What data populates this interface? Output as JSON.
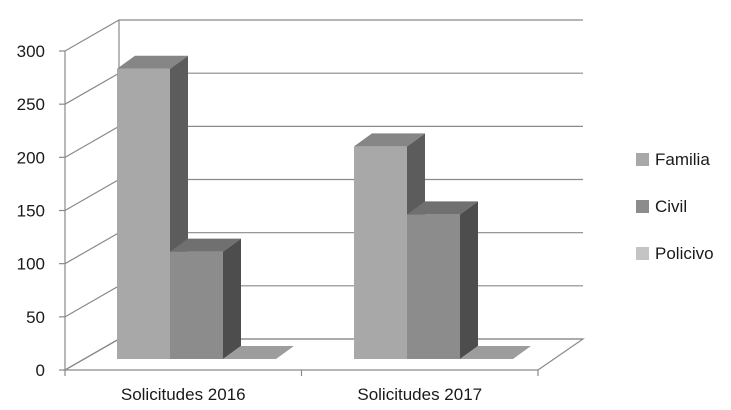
{
  "chart_data": {
    "type": "bar",
    "subtype": "3d-clustered-column",
    "title": "",
    "xlabel": "",
    "ylabel": "",
    "categories": [
      "Solicitudes 2016",
      "Solicitudes 2017"
    ],
    "ylim": [
      0,
      300
    ],
    "yticks": [
      "0",
      "50",
      "100",
      "150",
      "200",
      "250",
      "300"
    ],
    "grid": true,
    "legend_position": "right",
    "series": [
      {
        "name": "Familia",
        "values": [
          273,
          200
        ],
        "color": "#a8a8a8"
      },
      {
        "name": "Civil",
        "values": [
          101,
          136
        ],
        "color": "#8c8c8c"
      },
      {
        "name": "Policivo",
        "values": [
          0,
          0
        ],
        "color": "#c4c4c4"
      }
    ]
  }
}
